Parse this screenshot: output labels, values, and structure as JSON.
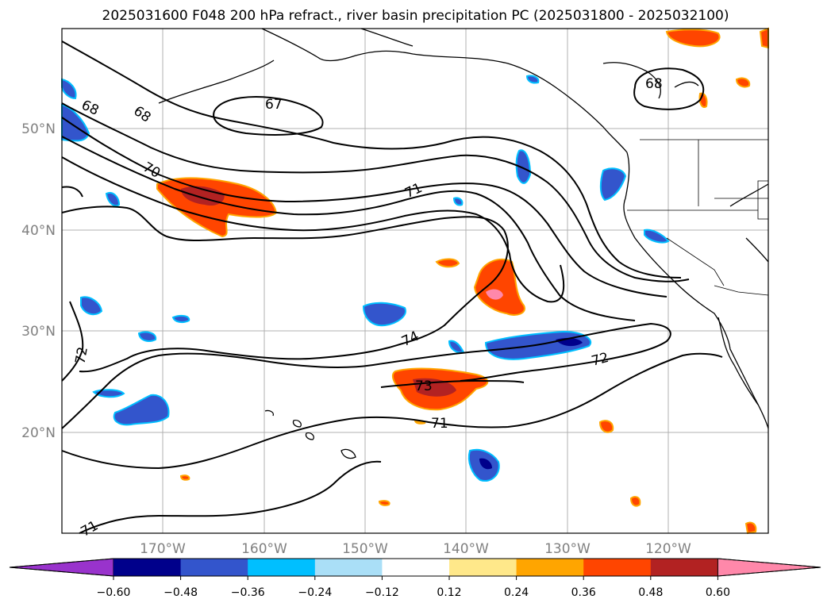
{
  "title": "2025031600 F048 200 hPa refract., river basin precipitation PC (2025031800 - 2025032100)",
  "lat_labels": [
    "50°N",
    "40°N",
    "30°N",
    "20°N"
  ],
  "lon_labels": [
    "170°W",
    "160°W",
    "150°W",
    "140°W",
    "130°W",
    "120°W"
  ],
  "contour_labels": [
    "67",
    "68",
    "68",
    "68",
    "70",
    "71",
    "74",
    "72",
    "72",
    "73",
    "71",
    "71"
  ],
  "colorbar": {
    "tick_labels": [
      "−0.60",
      "−0.48",
      "−0.36",
      "−0.24",
      "−0.12",
      "0.12",
      "0.24",
      "0.36",
      "0.48",
      "0.60"
    ],
    "colors": [
      "#9933cc",
      "#00008b",
      "#3355cc",
      "#00bfff",
      "#aadff7",
      "#ffffff",
      "#ffe88a",
      "#ffa500",
      "#ff4500",
      "#b22222",
      "#ff88aa"
    ]
  }
}
